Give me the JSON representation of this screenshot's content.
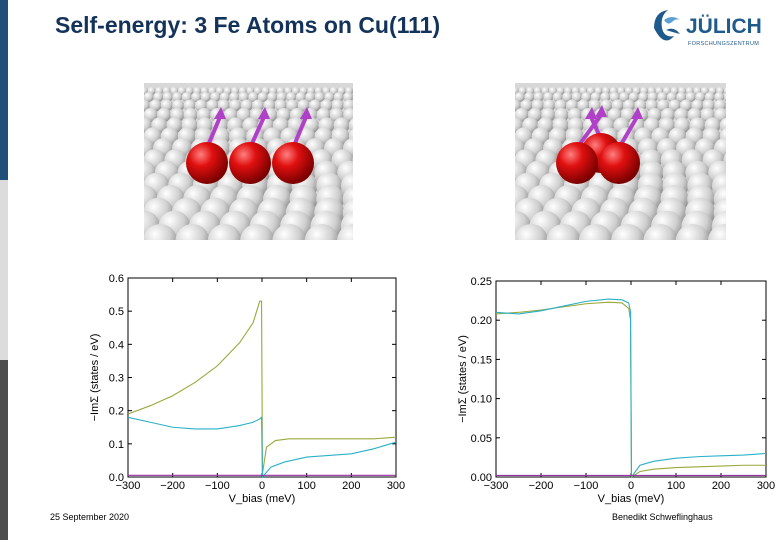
{
  "slide": {
    "title": "Self-energy: 3 Fe Atoms on Cu(111)",
    "footer_date": "25 September 2020",
    "footer_author": "Benedikt Schweflinghaus"
  },
  "logo": {
    "name": "JÜLICH",
    "subtitle": "FORSCHUNGSZENTRUM",
    "color": "#1f5a8c"
  },
  "images": [
    {
      "description_icon": "three-fe-atoms-linear-image"
    },
    {
      "description_icon": "three-fe-atoms-triangle-image"
    }
  ],
  "colors": {
    "series_green": "#9aa83a",
    "series_cyan": "#2ab0c8",
    "series_purple": "#9b30a8"
  },
  "chart_data": [
    {
      "type": "line",
      "xlabel": "V_bias (meV)",
      "ylabel": "−ImΣ (states / eV)",
      "xlim": [
        -300,
        300
      ],
      "ylim": [
        0,
        0.6
      ],
      "xticks": [
        "−300",
        "−200",
        "−100",
        "0",
        "100",
        "200",
        "300"
      ],
      "yticks": [
        "0.0",
        "0.1",
        "0.2",
        "0.3",
        "0.4",
        "0.5",
        "0.6"
      ],
      "series": [
        {
          "color": "green",
          "x": [
            -300,
            -250,
            -200,
            -150,
            -100,
            -50,
            -20,
            -5,
            -1,
            1,
            10,
            30,
            60,
            100,
            150,
            200,
            250,
            300
          ],
          "y": [
            0.19,
            0.215,
            0.245,
            0.285,
            0.335,
            0.405,
            0.465,
            0.53,
            0.53,
            0.01,
            0.09,
            0.11,
            0.115,
            0.115,
            0.115,
            0.115,
            0.115,
            0.12
          ]
        },
        {
          "color": "cyan",
          "x": [
            -300,
            -250,
            -200,
            -150,
            -100,
            -50,
            -20,
            -5,
            -1,
            1,
            20,
            50,
            100,
            150,
            200,
            250,
            300
          ],
          "y": [
            0.18,
            0.165,
            0.15,
            0.145,
            0.145,
            0.155,
            0.165,
            0.175,
            0.18,
            0.0,
            0.03,
            0.045,
            0.06,
            0.065,
            0.07,
            0.085,
            0.105
          ]
        },
        {
          "color": "purple",
          "x": [
            -300,
            -200,
            -100,
            0,
            100,
            200,
            300
          ],
          "y": [
            0.005,
            0.005,
            0.005,
            0.005,
            0.005,
            0.005,
            0.005
          ]
        }
      ]
    },
    {
      "type": "line",
      "xlabel": "V_bias (meV)",
      "ylabel": "−ImΣ (states / eV)",
      "xlim": [
        -300,
        300
      ],
      "ylim": [
        0,
        0.25
      ],
      "xticks": [
        "−300",
        "−200",
        "−100",
        "0",
        "100",
        "200",
        "300"
      ],
      "yticks": [
        "0.00",
        "0.05",
        "0.10",
        "0.15",
        "0.20",
        "0.25"
      ],
      "series": [
        {
          "color": "green",
          "x": [
            -300,
            -250,
            -200,
            -150,
            -100,
            -50,
            -20,
            -5,
            -1,
            1,
            20,
            50,
            100,
            150,
            200,
            250,
            300
          ],
          "y": [
            0.208,
            0.21,
            0.213,
            0.217,
            0.221,
            0.223,
            0.222,
            0.215,
            0.2,
            0.0,
            0.007,
            0.01,
            0.012,
            0.013,
            0.014,
            0.015,
            0.015
          ]
        },
        {
          "color": "cyan",
          "x": [
            -300,
            -250,
            -200,
            -150,
            -100,
            -50,
            -20,
            -5,
            -1,
            1,
            20,
            50,
            100,
            150,
            200,
            250,
            300
          ],
          "y": [
            0.21,
            0.208,
            0.212,
            0.218,
            0.224,
            0.227,
            0.226,
            0.222,
            0.21,
            0.0,
            0.015,
            0.02,
            0.024,
            0.026,
            0.027,
            0.028,
            0.03
          ]
        },
        {
          "color": "purple",
          "x": [
            -300,
            -200,
            -100,
            0,
            100,
            200,
            300
          ],
          "y": [
            0.002,
            0.002,
            0.002,
            0.002,
            0.002,
            0.002,
            0.002
          ]
        }
      ]
    }
  ]
}
